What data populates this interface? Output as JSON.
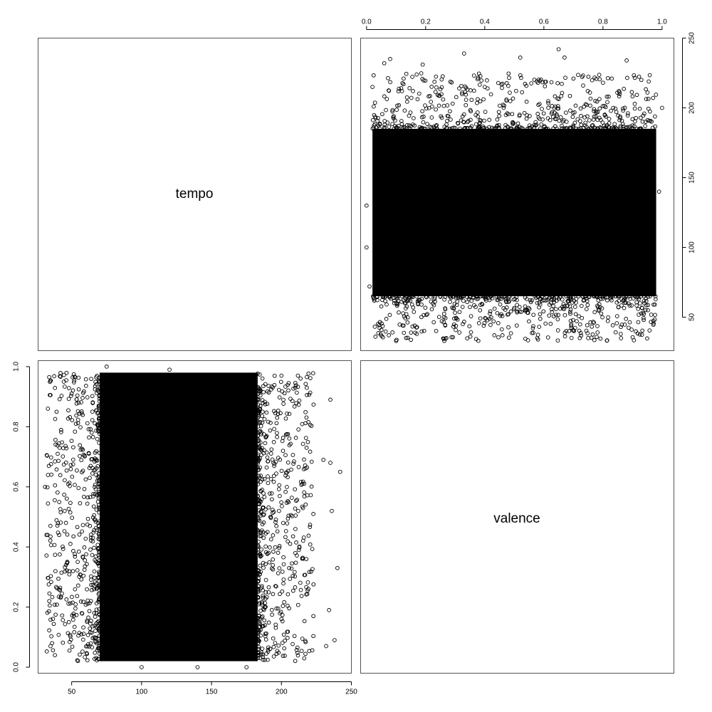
{
  "chart_data": {
    "type": "scatter",
    "title": "",
    "variables": [
      "tempo",
      "valence"
    ],
    "diagonal_labels": {
      "tempo": "tempo",
      "valence": "valence"
    },
    "panels": [
      {
        "name": "valence-vs-tempo",
        "position": "top-right",
        "x_variable": "valence",
        "y_variable": "tempo",
        "xlim": [
          -0.02,
          1.04
        ],
        "ylim": [
          26,
          250
        ],
        "x_ticks": [
          0.0,
          0.2,
          0.4,
          0.6,
          0.8,
          1.0
        ],
        "x_tick_labels": [
          "0.0",
          "0.2",
          "0.4",
          "0.6",
          "0.8",
          "1.0"
        ],
        "x_axis_side": "top",
        "y_ticks": [
          50,
          100,
          150,
          200,
          250
        ],
        "y_tick_labels": [
          "50",
          "100",
          "150",
          "200",
          "250"
        ],
        "y_axis_side": "right",
        "dense_region": {
          "x": [
            0.02,
            0.98
          ],
          "y": [
            65,
            185
          ]
        },
        "outliers": [
          [
            0.06,
            232
          ],
          [
            0.08,
            235
          ],
          [
            0.19,
            231
          ],
          [
            0.33,
            239
          ],
          [
            0.52,
            236
          ],
          [
            0.65,
            242
          ],
          [
            0.67,
            236
          ],
          [
            0.88,
            234
          ],
          [
            0.02,
            215
          ],
          [
            0.12,
            212
          ],
          [
            0.4,
            215
          ],
          [
            0.58,
            218
          ],
          [
            0.7,
            221
          ],
          [
            0.8,
            218
          ],
          [
            0.93,
            220
          ],
          [
            0.03,
            36
          ],
          [
            0.1,
            33
          ],
          [
            0.17,
            38
          ],
          [
            0.27,
            35
          ],
          [
            0.46,
            37
          ],
          [
            0.58,
            34
          ],
          [
            0.75,
            35
          ],
          [
            0.86,
            38
          ],
          [
            0.94,
            60
          ],
          [
            0.0,
            100
          ],
          [
            0.0,
            130
          ],
          [
            1.0,
            200
          ],
          [
            0.99,
            140
          ],
          [
            0.97,
            80
          ],
          [
            0.01,
            72
          ]
        ]
      },
      {
        "name": "tempo-vs-valence",
        "position": "bottom-left",
        "x_variable": "tempo",
        "y_variable": "valence",
        "xlim": [
          26,
          250
        ],
        "ylim": [
          -0.02,
          1.02
        ],
        "x_ticks": [
          50,
          100,
          150,
          200,
          250
        ],
        "x_tick_labels": [
          "50",
          "100",
          "150",
          "200",
          "250"
        ],
        "x_axis_side": "bottom",
        "y_ticks": [
          0.0,
          0.2,
          0.4,
          0.6,
          0.8,
          1.0
        ],
        "y_tick_labels": [
          "0.0",
          "0.2",
          "0.4",
          "0.6",
          "0.8",
          "1.0"
        ],
        "y_axis_side": "left",
        "dense_region": {
          "x": [
            70,
            183
          ],
          "y": [
            0.02,
            0.98
          ]
        },
        "outliers": [
          [
            232,
            0.07
          ],
          [
            235,
            0.89
          ],
          [
            236,
            0.52
          ],
          [
            240,
            0.33
          ],
          [
            242,
            0.65
          ],
          [
            234,
            0.19
          ],
          [
            238,
            0.09
          ],
          [
            230,
            0.69
          ],
          [
            235,
            0.68
          ],
          [
            218,
            0.73
          ],
          [
            215,
            0.61
          ],
          [
            212,
            0.52
          ],
          [
            210,
            0.38
          ],
          [
            33,
            0.86
          ],
          [
            32,
            0.44
          ],
          [
            31,
            0.6
          ],
          [
            34,
            0.22
          ],
          [
            36,
            0.08
          ],
          [
            38,
            0.04
          ],
          [
            40,
            0.71
          ],
          [
            45,
            0.52
          ],
          [
            50,
            0.91
          ],
          [
            55,
            0.88
          ],
          [
            48,
            0.15
          ],
          [
            100,
            0.0
          ],
          [
            140,
            0.0
          ],
          [
            175,
            0.0
          ],
          [
            75,
            1.0
          ],
          [
            120,
            0.99
          ],
          [
            200,
            0.97
          ]
        ]
      }
    ]
  }
}
